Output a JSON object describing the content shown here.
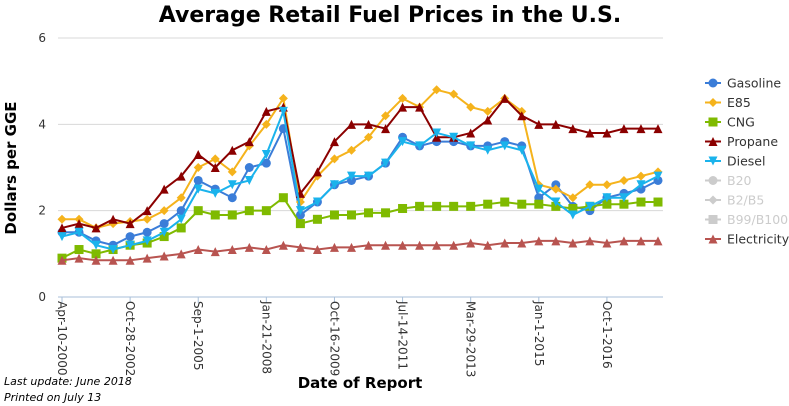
{
  "chart_data": {
    "type": "line",
    "title": "Average Retail Fuel Prices in the U.S.",
    "y_label": "Dollars per GGE",
    "x_label": "Date of Report",
    "notes": [
      "Last update: June 2018",
      "Printed on July 13"
    ],
    "categories": [
      "Apr-10-2000",
      null,
      null,
      null,
      "Oct-28-2002",
      null,
      null,
      null,
      "Sep-1-2005",
      null,
      null,
      null,
      "Jan-21-2008",
      null,
      null,
      null,
      "Oct-16-2009",
      null,
      null,
      null,
      "Jul-14-2011",
      null,
      null,
      null,
      "Mar-29-2013",
      null,
      null,
      null,
      "Jan-1-2015",
      null,
      null,
      null,
      "Oct-1-2016",
      null,
      null,
      null
    ],
    "ylim": [
      0,
      6
    ],
    "yticks": [
      0,
      2,
      4,
      6
    ],
    "grid": true,
    "series": [
      {
        "name": "Gasoline",
        "color": "#3b7dd8",
        "marker": "circle",
        "values": [
          1.5,
          1.5,
          1.3,
          1.2,
          1.4,
          1.5,
          1.7,
          2.0,
          2.7,
          2.5,
          2.3,
          3.0,
          3.1,
          3.9,
          1.9,
          2.2,
          2.6,
          2.7,
          2.8,
          3.1,
          3.7,
          3.5,
          3.6,
          3.6,
          3.5,
          3.5,
          3.6,
          3.5,
          2.3,
          2.6,
          2.1,
          2.0,
          2.3,
          2.4,
          2.5,
          2.7
        ]
      },
      {
        "name": "E85",
        "color": "#f5b31c",
        "marker": "diamond",
        "values": [
          1.8,
          1.8,
          1.6,
          1.7,
          1.75,
          1.8,
          2.0,
          2.3,
          3.0,
          3.2,
          2.9,
          3.5,
          4.0,
          4.6,
          2.2,
          2.8,
          3.2,
          3.4,
          3.7,
          4.2,
          4.6,
          4.4,
          4.8,
          4.7,
          4.4,
          4.3,
          4.6,
          4.3,
          2.6,
          2.5,
          2.3,
          2.6,
          2.6,
          2.7,
          2.8,
          2.9
        ]
      },
      {
        "name": "CNG",
        "color": "#7fba00",
        "marker": "square",
        "values": [
          0.9,
          1.1,
          1.0,
          1.1,
          1.2,
          1.25,
          1.4,
          1.6,
          2.0,
          1.9,
          1.9,
          2.0,
          2.0,
          2.3,
          1.7,
          1.8,
          1.9,
          1.9,
          1.95,
          1.95,
          2.05,
          2.1,
          2.1,
          2.1,
          2.1,
          2.15,
          2.2,
          2.15,
          2.15,
          2.1,
          2.05,
          2.1,
          2.15,
          2.15,
          2.2,
          2.2
        ]
      },
      {
        "name": "Propane",
        "color": "#8b0000",
        "marker": "triangle",
        "values": [
          1.6,
          1.7,
          1.6,
          1.8,
          1.7,
          2.0,
          2.5,
          2.8,
          3.3,
          3.0,
          3.4,
          3.6,
          4.3,
          4.4,
          2.4,
          2.9,
          3.6,
          4.0,
          4.0,
          3.9,
          4.4,
          4.4,
          3.7,
          3.7,
          3.8,
          4.1,
          4.6,
          4.2,
          4.0,
          4.0,
          3.9,
          3.8,
          3.8,
          3.9,
          3.9,
          3.9
        ]
      },
      {
        "name": "Diesel",
        "color": "#1ab3ec",
        "marker": "triangle-down",
        "values": [
          1.4,
          1.5,
          1.2,
          1.1,
          1.2,
          1.3,
          1.5,
          1.8,
          2.5,
          2.4,
          2.6,
          2.7,
          3.3,
          4.3,
          2.0,
          2.2,
          2.6,
          2.8,
          2.8,
          3.1,
          3.6,
          3.5,
          3.8,
          3.7,
          3.5,
          3.4,
          3.5,
          3.4,
          2.5,
          2.2,
          1.9,
          2.1,
          2.3,
          2.3,
          2.6,
          2.8
        ]
      },
      {
        "name": "B20",
        "color": "#cccccc",
        "marker": "circle",
        "visible": false
      },
      {
        "name": "B2/B5",
        "color": "#cccccc",
        "marker": "diamond",
        "visible": false
      },
      {
        "name": "B99/B100",
        "color": "#cccccc",
        "marker": "square",
        "visible": false
      },
      {
        "name": "Electricity",
        "color": "#b85450",
        "marker": "triangle",
        "values": [
          0.85,
          0.9,
          0.85,
          0.85,
          0.85,
          0.9,
          0.95,
          1.0,
          1.1,
          1.05,
          1.1,
          1.15,
          1.1,
          1.2,
          1.15,
          1.1,
          1.15,
          1.15,
          1.2,
          1.2,
          1.2,
          1.2,
          1.2,
          1.2,
          1.25,
          1.2,
          1.25,
          1.25,
          1.3,
          1.3,
          1.25,
          1.3,
          1.25,
          1.3,
          1.3,
          1.3
        ]
      }
    ]
  }
}
